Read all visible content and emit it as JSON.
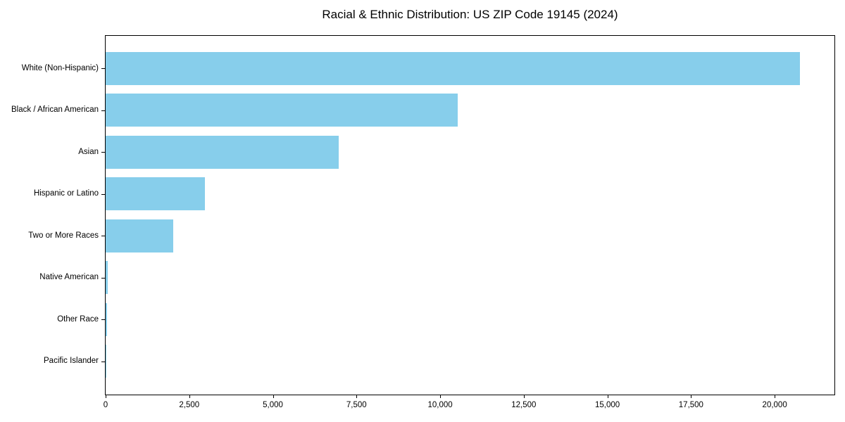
{
  "figure": {
    "background": "#ffffff"
  },
  "chart_data": {
    "type": "bar",
    "orientation": "horizontal",
    "title": "Racial & Ethnic Distribution: US ZIP Code 19145 (2024)",
    "categories": [
      "White (Non-Hispanic)",
      "Black / African American",
      "Asian",
      "Hispanic or Latino",
      "Two or More Races",
      "Native American",
      "Other Race",
      "Pacific Islander"
    ],
    "values": [
      20750,
      10530,
      6960,
      2960,
      2020,
      60,
      50,
      10
    ],
    "xlabel": "",
    "ylabel": "",
    "xlim": [
      0,
      21786
    ],
    "xticks": [
      0,
      2500,
      5000,
      7500,
      10000,
      12500,
      15000,
      17500,
      20000
    ],
    "xtick_labels": [
      "0",
      "2,500",
      "5,000",
      "7,500",
      "10,000",
      "12,500",
      "15,000",
      "17,500",
      "20,000"
    ],
    "grid": false,
    "legend": null,
    "bar_color": "#87CEEB",
    "axis_color": "#000000",
    "text_color": "#000000"
  }
}
